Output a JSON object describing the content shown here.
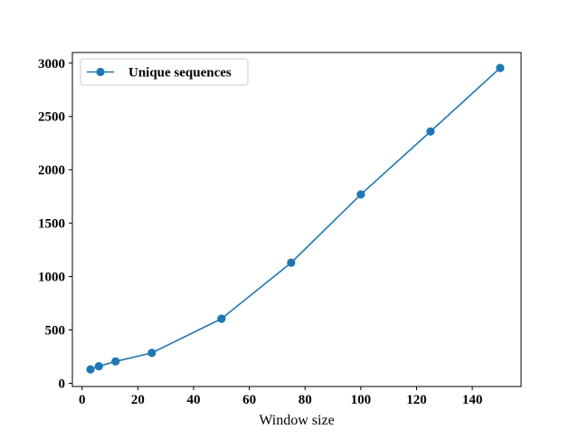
{
  "chart_data": {
    "type": "line",
    "xlabel": "Window size",
    "ylabel": "",
    "title": "",
    "xlim": [
      -3.5,
      157.5
    ],
    "ylim": [
      -30,
      3100
    ],
    "xticks": [
      0,
      20,
      40,
      60,
      80,
      100,
      120,
      140
    ],
    "yticks": [
      0,
      500,
      1000,
      1500,
      2000,
      2500,
      3000
    ],
    "grid": false,
    "legend_position": "upper-left",
    "series": [
      {
        "name": "Unique sequences",
        "color": "#1f77b4",
        "marker": "circle",
        "x": [
          3,
          6,
          12,
          25,
          50,
          75,
          100,
          125,
          150
        ],
        "y": [
          130,
          160,
          205,
          285,
          605,
          1130,
          1770,
          2360,
          2955
        ]
      }
    ]
  }
}
